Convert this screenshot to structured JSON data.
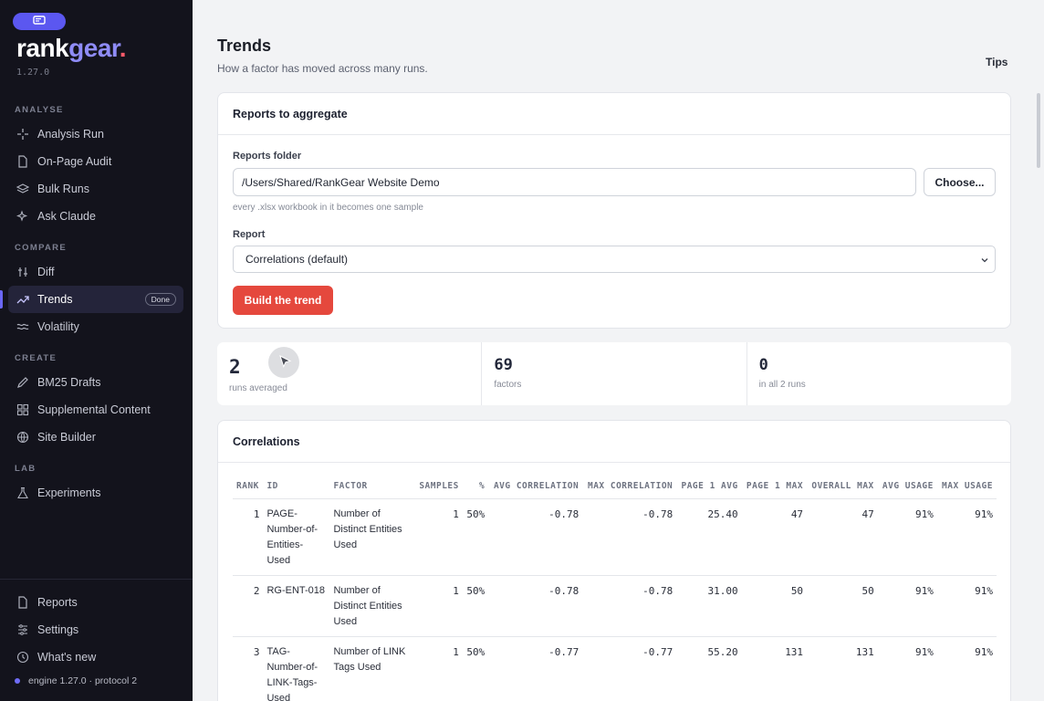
{
  "brand": {
    "name_part1": "rank",
    "name_part2": "gear",
    "name_part3": ".",
    "version": "1.27.0"
  },
  "colors": {
    "accent": "#6b67f5",
    "primary_button": "#e5483d",
    "sidebar_bg": "#13131c"
  },
  "sidebar": {
    "sections": [
      {
        "label": "ANALYSE",
        "items": [
          {
            "label": "Analysis Run",
            "icon": "sparkle-icon"
          },
          {
            "label": "On-Page Audit",
            "icon": "file-icon"
          },
          {
            "label": "Bulk Runs",
            "icon": "layers-icon"
          },
          {
            "label": "Ask Claude",
            "icon": "sparkles-icon"
          }
        ]
      },
      {
        "label": "COMPARE",
        "items": [
          {
            "label": "Diff",
            "icon": "diff-icon"
          },
          {
            "label": "Trends",
            "icon": "trend-icon",
            "badge": "Done",
            "active": true
          },
          {
            "label": "Volatility",
            "icon": "wave-icon"
          }
        ]
      },
      {
        "label": "CREATE",
        "items": [
          {
            "label": "BM25 Drafts",
            "icon": "pencil-icon"
          },
          {
            "label": "Supplemental Content",
            "icon": "grid-icon"
          },
          {
            "label": "Site Builder",
            "icon": "globe-icon"
          }
        ]
      },
      {
        "label": "LAB",
        "items": [
          {
            "label": "Experiments",
            "icon": "flask-icon"
          }
        ]
      }
    ],
    "bottom": [
      {
        "label": "Reports",
        "icon": "file-icon"
      },
      {
        "label": "Settings",
        "icon": "sliders-icon"
      },
      {
        "label": "What's new",
        "icon": "clock-icon"
      }
    ],
    "engine": "engine 1.27.0 · protocol 2"
  },
  "page": {
    "title": "Trends",
    "subtitle": "How a factor has moved across many runs.",
    "tips": "Tips"
  },
  "form": {
    "title": "Reports to aggregate",
    "folder_label": "Reports folder",
    "folder_value": "/Users/Shared/RankGear Website Demo",
    "choose": "Choose...",
    "hint": "every .xlsx workbook in it becomes one sample",
    "report_label": "Report",
    "report_value": "Correlations (default)",
    "build": "Build the trend"
  },
  "stats": [
    {
      "value": "2",
      "label": "runs averaged"
    },
    {
      "value": "69",
      "label": "factors"
    },
    {
      "value": "0",
      "label": "in all 2 runs"
    }
  ],
  "table": {
    "title": "Correlations",
    "columns": [
      "RANK",
      "ID",
      "FACTOR",
      "SAMPLES",
      "%",
      "AVG CORRELATION",
      "MAX CORRELATION",
      "PAGE 1 AVG",
      "PAGE 1 MAX",
      "OVERALL MAX",
      "AVG USAGE",
      "MAX USAGE"
    ],
    "rows": [
      [
        "1",
        "PAGE-Number-of-Entities-Used",
        "Number of Distinct Entities Used",
        "1",
        "50%",
        "-0.78",
        "-0.78",
        "25.40",
        "47",
        "47",
        "91%",
        "91%"
      ],
      [
        "2",
        "RG-ENT-018",
        "Number of Distinct Entities Used",
        "1",
        "50%",
        "-0.78",
        "-0.78",
        "31.00",
        "50",
        "50",
        "91%",
        "91%"
      ],
      [
        "3",
        "TAG-Number-of-LINK-Tags-Used",
        "Number of LINK Tags Used",
        "1",
        "50%",
        "-0.77",
        "-0.77",
        "55.20",
        "131",
        "131",
        "91%",
        "91%"
      ]
    ]
  }
}
